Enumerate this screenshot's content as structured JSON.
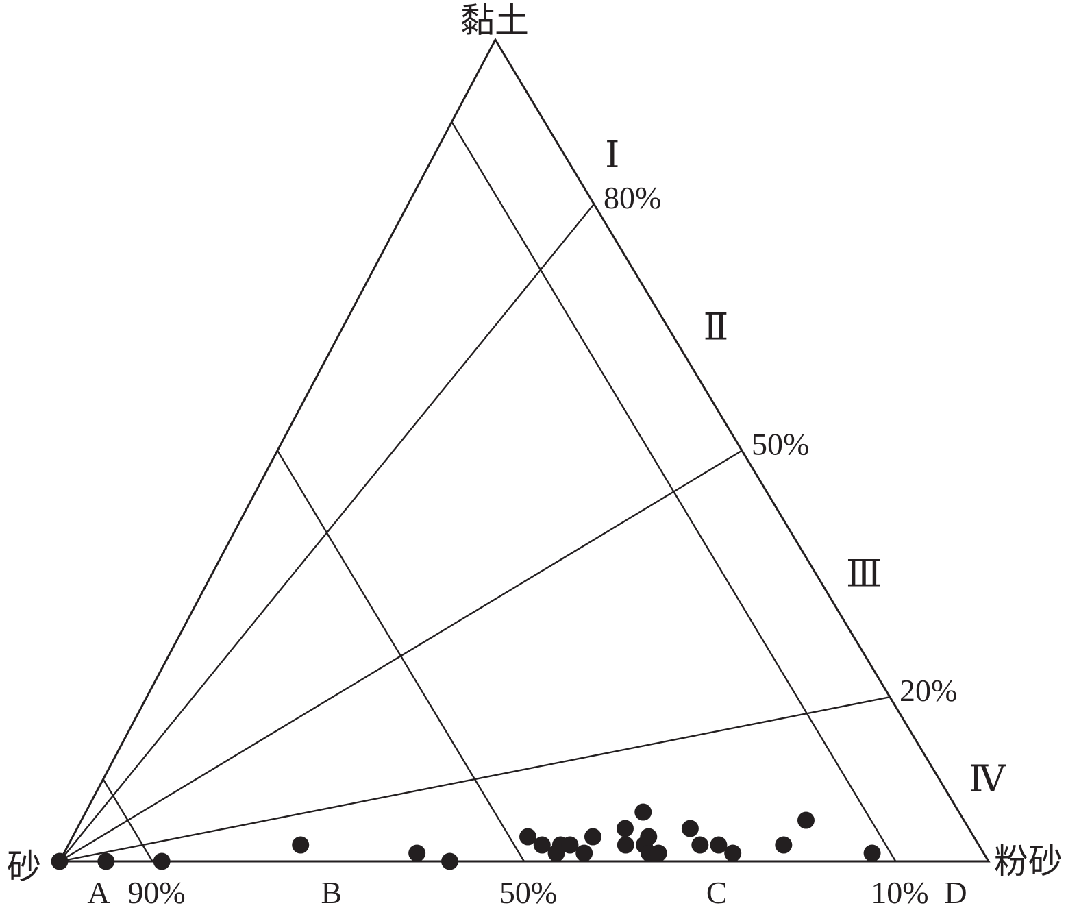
{
  "chart_data": {
    "type": "ternary",
    "vertices": {
      "top": "黏土",
      "left": "砂",
      "right": "粉砂"
    },
    "colors": {
      "line": "#231f20",
      "point": "#231f20"
    },
    "sand_classes": {
      "labels": [
        "A",
        "B",
        "C",
        "D"
      ],
      "boundaries": [
        {
          "label": "90%",
          "sand_fraction_in_base": 0.9
        },
        {
          "label": "50%",
          "sand_fraction_in_base": 0.5
        },
        {
          "label": "10%",
          "sand_fraction_in_base": 0.1
        }
      ]
    },
    "clay_classes": {
      "labels": [
        "Ⅰ",
        "Ⅱ",
        "Ⅲ",
        "Ⅳ"
      ],
      "boundaries": [
        {
          "label": "80%",
          "clay_fraction": 0.8
        },
        {
          "label": "50%",
          "clay_fraction": 0.5
        },
        {
          "label": "20%",
          "clay_fraction": 0.2
        }
      ]
    },
    "points": [
      {
        "sand": 100,
        "silt": 0,
        "clay": 0
      },
      {
        "sand": 95,
        "silt": 5,
        "clay": 0
      },
      {
        "sand": 89,
        "silt": 11,
        "clay": 0
      },
      {
        "sand": 73,
        "silt": 25,
        "clay": 2
      },
      {
        "sand": 61,
        "silt": 38,
        "clay": 1
      },
      {
        "sand": 58,
        "silt": 42,
        "clay": 0
      },
      {
        "sand": 48,
        "silt": 49,
        "clay": 3
      },
      {
        "sand": 47,
        "silt": 51,
        "clay": 2
      },
      {
        "sand": 46,
        "silt": 53,
        "clay": 1
      },
      {
        "sand": 45,
        "silt": 53,
        "clay": 2
      },
      {
        "sand": 44,
        "silt": 54,
        "clay": 2
      },
      {
        "sand": 43,
        "silt": 56,
        "clay": 1
      },
      {
        "sand": 41,
        "silt": 56,
        "clay": 3
      },
      {
        "sand": 38,
        "silt": 60,
        "clay": 2
      },
      {
        "sand": 37,
        "silt": 59,
        "clay": 4
      },
      {
        "sand": 36,
        "silt": 62,
        "clay": 2
      },
      {
        "sand": 36,
        "silt": 63,
        "clay": 1
      },
      {
        "sand": 35,
        "silt": 62,
        "clay": 3
      },
      {
        "sand": 35,
        "silt": 64,
        "clay": 1
      },
      {
        "sand": 34,
        "silt": 60,
        "clay": 6
      },
      {
        "sand": 30,
        "silt": 66,
        "clay": 4
      },
      {
        "sand": 30,
        "silt": 68,
        "clay": 2
      },
      {
        "sand": 28,
        "silt": 70,
        "clay": 2
      },
      {
        "sand": 27,
        "silt": 72,
        "clay": 1
      },
      {
        "sand": 21,
        "silt": 77,
        "clay": 2
      },
      {
        "sand": 17,
        "silt": 78,
        "clay": 5
      },
      {
        "sand": 12,
        "silt": 87,
        "clay": 1
      }
    ]
  }
}
